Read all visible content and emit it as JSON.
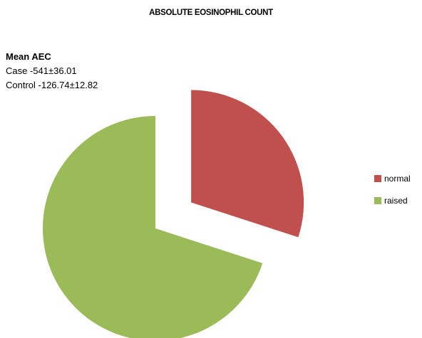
{
  "chart_data": {
    "type": "pie",
    "title": "ABSOLUTE EOSINOPHIL COUNT",
    "annotation": {
      "heading": "Mean AEC",
      "lines": [
        "Case -541±36.01",
        "Control -126.74±12.82"
      ]
    },
    "categories": [
      "normal",
      "raised"
    ],
    "values": [
      30,
      70
    ],
    "exploded": [
      "normal"
    ],
    "colors": [
      "#C0504D",
      "#9BBB59"
    ],
    "legend_position": "right"
  }
}
